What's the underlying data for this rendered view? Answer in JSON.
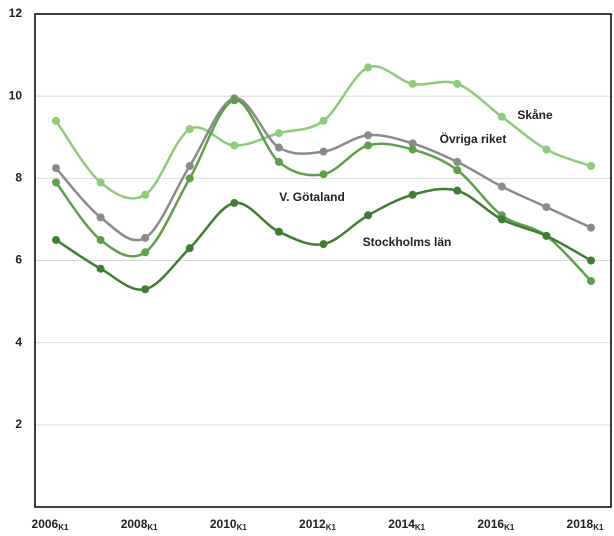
{
  "chart_data": {
    "type": "line",
    "categories": [
      "2006",
      null,
      "2008",
      null,
      "2010",
      null,
      "2012",
      null,
      "2014",
      null,
      "2016",
      null,
      "2018"
    ],
    "category_subscript": "K1",
    "ylim": [
      0,
      12
    ],
    "yticks": [
      2,
      4,
      6,
      8,
      10,
      12
    ],
    "grid": true,
    "series": [
      {
        "name": "Skåne",
        "color": "#8fcb7c",
        "values": [
          9.4,
          7.9,
          7.6,
          9.2,
          8.8,
          9.1,
          9.4,
          10.7,
          10.3,
          10.3,
          9.5,
          8.7,
          8.3
        ]
      },
      {
        "name": "Övriga riket",
        "color": "#8a8a8a",
        "values": [
          8.25,
          7.05,
          6.55,
          8.3,
          9.95,
          8.75,
          8.65,
          9.05,
          8.85,
          8.4,
          7.8,
          7.3,
          6.8
        ]
      },
      {
        "name": "V. Götaland",
        "color": "#5f9f4b",
        "values": [
          7.9,
          6.5,
          6.2,
          8.0,
          9.9,
          8.4,
          8.1,
          8.8,
          8.7,
          8.2,
          7.1,
          6.6,
          5.5
        ]
      },
      {
        "name": "Stockholms län",
        "color": "#407c34",
        "values": [
          6.5,
          5.8,
          5.3,
          6.3,
          7.4,
          6.7,
          6.4,
          7.1,
          7.6,
          7.7,
          7.0,
          6.6,
          6.0
        ]
      }
    ]
  }
}
